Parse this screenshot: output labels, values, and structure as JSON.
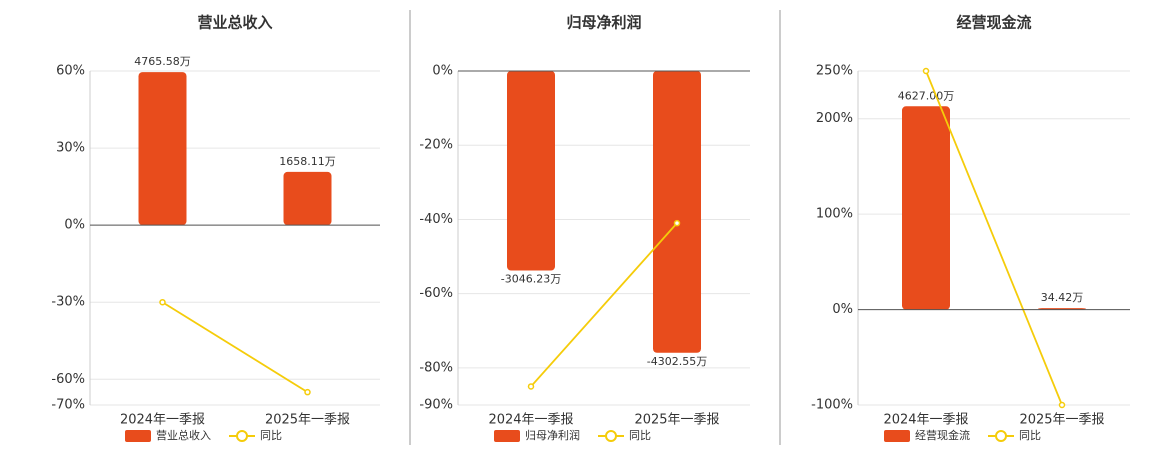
{
  "chart_data": [
    {
      "type": "bar",
      "title": "营业总收入",
      "categories": [
        "2024年一季报",
        "2025年一季报"
      ],
      "ylim": [
        -70,
        60
      ],
      "yticks": [
        {
          "value": -70,
          "label": "-70%"
        },
        {
          "value": -60,
          "label": "-60%"
        },
        {
          "value": -30,
          "label": "-30%"
        },
        {
          "value": 0,
          "label": "0%"
        },
        {
          "value": 30,
          "label": "30%"
        },
        {
          "value": 60,
          "label": "60%"
        }
      ],
      "y2lim": [
        -5600,
        4800
      ],
      "grid": true,
      "series": [
        {
          "name": "营业总收入",
          "color": "#e84c1c",
          "axis": "y2",
          "values": [
            4765.58,
            1658.11
          ],
          "value_labels": [
            "4765.58万",
            "1658.11万"
          ]
        },
        {
          "name": "同比",
          "color": "#f5cc0a",
          "type": "line",
          "values": [
            -30,
            -65
          ]
        }
      ]
    },
    {
      "type": "bar",
      "title": "归母净利润",
      "categories": [
        "2024年一季报",
        "2025年一季报"
      ],
      "ylim": [
        -90,
        0
      ],
      "yticks": [
        {
          "value": -90,
          "label": "-90%"
        },
        {
          "value": -80,
          "label": "-80%"
        },
        {
          "value": -60,
          "label": "-60%"
        },
        {
          "value": -40,
          "label": "-40%"
        },
        {
          "value": -20,
          "label": "-20%"
        },
        {
          "value": 0,
          "label": "0%"
        }
      ],
      "y2lim": [
        -5100,
        0
      ],
      "grid": true,
      "series": [
        {
          "name": "归母净利润",
          "color": "#e84c1c",
          "axis": "y2",
          "values": [
            -3046.23,
            -4302.55
          ],
          "value_labels": [
            "-3046.23万",
            "-4302.55万"
          ]
        },
        {
          "name": "同比",
          "color": "#f5cc0a",
          "type": "line",
          "values": [
            -85,
            -41
          ]
        }
      ]
    },
    {
      "type": "bar",
      "title": "经营现金流",
      "categories": [
        "2024年一季报",
        "2025年一季报"
      ],
      "ylim": [
        -100,
        250
      ],
      "yticks": [
        {
          "value": -100,
          "label": "-100%"
        },
        {
          "value": 0,
          "label": "0%"
        },
        {
          "value": 100,
          "label": "100%"
        },
        {
          "value": 200,
          "label": "200%"
        },
        {
          "value": 250,
          "label": "250%"
        }
      ],
      "y2lim": [
        -2170,
        5430
      ],
      "grid": true,
      "series": [
        {
          "name": "经营现金流",
          "color": "#e84c1c",
          "axis": "y2",
          "values": [
            4627.0,
            34.42
          ],
          "value_labels": [
            "4627.00万",
            "34.42万"
          ]
        },
        {
          "name": "同比",
          "color": "#f5cc0a",
          "type": "line",
          "values": [
            250,
            -100
          ]
        }
      ]
    }
  ]
}
